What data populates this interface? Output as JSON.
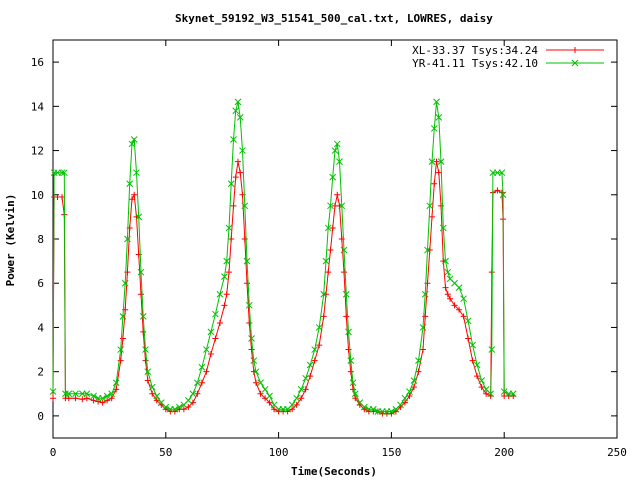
{
  "chart_data": {
    "type": "line",
    "title": "Skynet_59192_W3_51541_500_cal.txt, LOWRES, daisy",
    "xlabel": "Time(Seconds)",
    "ylabel": "Power (Kelvin)",
    "xlim": [
      0,
      250
    ],
    "ylim": [
      -1,
      17
    ],
    "xticks": [
      0,
      50,
      100,
      150,
      200,
      250
    ],
    "yticks": [
      0,
      2,
      4,
      6,
      8,
      10,
      12,
      14,
      16
    ],
    "grid": false,
    "legend_position": "top-right",
    "series": [
      {
        "name": "XL-33.37 Tsys:34.24",
        "color": "#ff0000",
        "marker": "plus",
        "points": [
          [
            0,
            0.8
          ],
          [
            0.5,
            9.9
          ],
          [
            2,
            9.9
          ],
          [
            4,
            9.9
          ],
          [
            5,
            9.1
          ],
          [
            5.5,
            0.8
          ],
          [
            7,
            0.8
          ],
          [
            10,
            0.8
          ],
          [
            13,
            0.75
          ],
          [
            15,
            0.8
          ],
          [
            18,
            0.7
          ],
          [
            20,
            0.65
          ],
          [
            22,
            0.6
          ],
          [
            24,
            0.7
          ],
          [
            26,
            0.8
          ],
          [
            28,
            1.2
          ],
          [
            30,
            2.5
          ],
          [
            31,
            3.5
          ],
          [
            32,
            4.8
          ],
          [
            33,
            6.5
          ],
          [
            34,
            8.5
          ],
          [
            35,
            9.8
          ],
          [
            36,
            10.0
          ],
          [
            37,
            9.0
          ],
          [
            38,
            7.3
          ],
          [
            39,
            5.5
          ],
          [
            40,
            3.8
          ],
          [
            41,
            2.5
          ],
          [
            42,
            1.6
          ],
          [
            44,
            1.0
          ],
          [
            46,
            0.7
          ],
          [
            48,
            0.5
          ],
          [
            50,
            0.3
          ],
          [
            52,
            0.2
          ],
          [
            54,
            0.2
          ],
          [
            56,
            0.3
          ],
          [
            58,
            0.3
          ],
          [
            60,
            0.4
          ],
          [
            62,
            0.6
          ],
          [
            64,
            1.0
          ],
          [
            66,
            1.5
          ],
          [
            68,
            2.0
          ],
          [
            70,
            2.8
          ],
          [
            72,
            3.5
          ],
          [
            74,
            4.2
          ],
          [
            76,
            5.0
          ],
          [
            77,
            5.5
          ],
          [
            78,
            6.5
          ],
          [
            79,
            8.0
          ],
          [
            80,
            9.5
          ],
          [
            81,
            10.8
          ],
          [
            82,
            11.5
          ],
          [
            83,
            11.0
          ],
          [
            84,
            10.0
          ],
          [
            85,
            8.0
          ],
          [
            86,
            6.0
          ],
          [
            87,
            4.2
          ],
          [
            88,
            3.0
          ],
          [
            89,
            2.0
          ],
          [
            90,
            1.5
          ],
          [
            92,
            1.0
          ],
          [
            94,
            0.8
          ],
          [
            96,
            0.6
          ],
          [
            98,
            0.3
          ],
          [
            100,
            0.2
          ],
          [
            102,
            0.2
          ],
          [
            104,
            0.2
          ],
          [
            106,
            0.3
          ],
          [
            108,
            0.5
          ],
          [
            110,
            0.8
          ],
          [
            112,
            1.2
          ],
          [
            114,
            1.8
          ],
          [
            116,
            2.5
          ],
          [
            118,
            3.2
          ],
          [
            120,
            4.5
          ],
          [
            121,
            5.5
          ],
          [
            122,
            6.5
          ],
          [
            123,
            7.5
          ],
          [
            124,
            8.5
          ],
          [
            125,
            9.5
          ],
          [
            126,
            10.0
          ],
          [
            127,
            9.5
          ],
          [
            128,
            8.0
          ],
          [
            129,
            6.5
          ],
          [
            130,
            4.5
          ],
          [
            131,
            3.0
          ],
          [
            132,
            2.0
          ],
          [
            133,
            1.2
          ],
          [
            134,
            0.8
          ],
          [
            136,
            0.5
          ],
          [
            138,
            0.3
          ],
          [
            140,
            0.2
          ],
          [
            142,
            0.2
          ],
          [
            144,
            0.2
          ],
          [
            146,
            0.1
          ],
          [
            148,
            0.1
          ],
          [
            150,
            0.1
          ],
          [
            152,
            0.2
          ],
          [
            154,
            0.4
          ],
          [
            156,
            0.6
          ],
          [
            158,
            0.9
          ],
          [
            160,
            1.3
          ],
          [
            162,
            2.0
          ],
          [
            164,
            3.0
          ],
          [
            165,
            4.5
          ],
          [
            166,
            6.0
          ],
          [
            167,
            7.5
          ],
          [
            168,
            9.0
          ],
          [
            169,
            10.5
          ],
          [
            170,
            11.5
          ],
          [
            171,
            11.0
          ],
          [
            172,
            9.5
          ],
          [
            173,
            7.0
          ],
          [
            174,
            5.8
          ],
          [
            175,
            5.5
          ],
          [
            176,
            5.3
          ],
          [
            178,
            5.0
          ],
          [
            180,
            4.8
          ],
          [
            182,
            4.5
          ],
          [
            184,
            3.5
          ],
          [
            186,
            2.5
          ],
          [
            188,
            1.8
          ],
          [
            190,
            1.3
          ],
          [
            192,
            1.0
          ],
          [
            194,
            0.9
          ],
          [
            194.5,
            6.5
          ],
          [
            195,
            10.1
          ],
          [
            197,
            10.2
          ],
          [
            199,
            10.1
          ],
          [
            199.5,
            8.9
          ],
          [
            200,
            0.9
          ],
          [
            202,
            0.9
          ],
          [
            204,
            0.9
          ]
        ]
      },
      {
        "name": "YR-41.11 Tsys:42.10",
        "color": "#00c000",
        "marker": "x",
        "points": [
          [
            0,
            1.1
          ],
          [
            0.5,
            11.0
          ],
          [
            2,
            11.0
          ],
          [
            4,
            11.0
          ],
          [
            5,
            11.0
          ],
          [
            5.5,
            1.0
          ],
          [
            7,
            1.0
          ],
          [
            10,
            1.0
          ],
          [
            13,
            1.0
          ],
          [
            15,
            1.0
          ],
          [
            18,
            0.9
          ],
          [
            20,
            0.8
          ],
          [
            22,
            0.8
          ],
          [
            24,
            0.9
          ],
          [
            26,
            1.0
          ],
          [
            28,
            1.5
          ],
          [
            30,
            3.0
          ],
          [
            31,
            4.5
          ],
          [
            32,
            6.0
          ],
          [
            33,
            8.0
          ],
          [
            34,
            10.5
          ],
          [
            35,
            12.3
          ],
          [
            36,
            12.5
          ],
          [
            37,
            11.0
          ],
          [
            38,
            9.0
          ],
          [
            39,
            6.5
          ],
          [
            40,
            4.5
          ],
          [
            41,
            3.0
          ],
          [
            42,
            2.0
          ],
          [
            44,
            1.3
          ],
          [
            46,
            0.9
          ],
          [
            48,
            0.6
          ],
          [
            50,
            0.4
          ],
          [
            52,
            0.3
          ],
          [
            54,
            0.3
          ],
          [
            56,
            0.4
          ],
          [
            58,
            0.5
          ],
          [
            60,
            0.7
          ],
          [
            62,
            1.0
          ],
          [
            64,
            1.5
          ],
          [
            66,
            2.2
          ],
          [
            68,
            3.0
          ],
          [
            70,
            3.8
          ],
          [
            72,
            4.6
          ],
          [
            74,
            5.5
          ],
          [
            76,
            6.3
          ],
          [
            77,
            7.0
          ],
          [
            78,
            8.5
          ],
          [
            79,
            10.5
          ],
          [
            80,
            12.5
          ],
          [
            81,
            13.8
          ],
          [
            82,
            14.2
          ],
          [
            83,
            13.5
          ],
          [
            84,
            12.0
          ],
          [
            85,
            9.5
          ],
          [
            86,
            7.0
          ],
          [
            87,
            5.0
          ],
          [
            88,
            3.5
          ],
          [
            89,
            2.5
          ],
          [
            90,
            2.0
          ],
          [
            92,
            1.5
          ],
          [
            94,
            1.2
          ],
          [
            96,
            0.9
          ],
          [
            98,
            0.5
          ],
          [
            100,
            0.3
          ],
          [
            102,
            0.3
          ],
          [
            104,
            0.3
          ],
          [
            106,
            0.5
          ],
          [
            108,
            0.8
          ],
          [
            110,
            1.2
          ],
          [
            112,
            1.7
          ],
          [
            114,
            2.3
          ],
          [
            116,
            3.0
          ],
          [
            118,
            4.0
          ],
          [
            120,
            5.5
          ],
          [
            121,
            7.0
          ],
          [
            122,
            8.5
          ],
          [
            123,
            9.5
          ],
          [
            124,
            10.8
          ],
          [
            125,
            12.0
          ],
          [
            126,
            12.3
          ],
          [
            127,
            11.5
          ],
          [
            128,
            9.5
          ],
          [
            129,
            7.5
          ],
          [
            130,
            5.5
          ],
          [
            131,
            3.8
          ],
          [
            132,
            2.5
          ],
          [
            133,
            1.5
          ],
          [
            134,
            1.0
          ],
          [
            136,
            0.6
          ],
          [
            138,
            0.4
          ],
          [
            140,
            0.3
          ],
          [
            142,
            0.3
          ],
          [
            144,
            0.2
          ],
          [
            146,
            0.2
          ],
          [
            148,
            0.2
          ],
          [
            150,
            0.2
          ],
          [
            152,
            0.3
          ],
          [
            154,
            0.5
          ],
          [
            156,
            0.8
          ],
          [
            158,
            1.1
          ],
          [
            160,
            1.6
          ],
          [
            162,
            2.5
          ],
          [
            164,
            4.0
          ],
          [
            165,
            5.5
          ],
          [
            166,
            7.5
          ],
          [
            167,
            9.5
          ],
          [
            168,
            11.5
          ],
          [
            169,
            13.0
          ],
          [
            170,
            14.2
          ],
          [
            171,
            13.5
          ],
          [
            172,
            11.5
          ],
          [
            173,
            8.5
          ],
          [
            174,
            7.0
          ],
          [
            175,
            6.5
          ],
          [
            176,
            6.2
          ],
          [
            178,
            6.0
          ],
          [
            180,
            5.8
          ],
          [
            182,
            5.3
          ],
          [
            184,
            4.3
          ],
          [
            186,
            3.2
          ],
          [
            188,
            2.3
          ],
          [
            190,
            1.6
          ],
          [
            192,
            1.2
          ],
          [
            194,
            1.0
          ],
          [
            194.5,
            3.0
          ],
          [
            195,
            11.0
          ],
          [
            197,
            11.0
          ],
          [
            199,
            11.0
          ],
          [
            199.5,
            10.0
          ],
          [
            200,
            1.1
          ],
          [
            202,
            1.0
          ],
          [
            204,
            1.0
          ]
        ]
      }
    ]
  }
}
